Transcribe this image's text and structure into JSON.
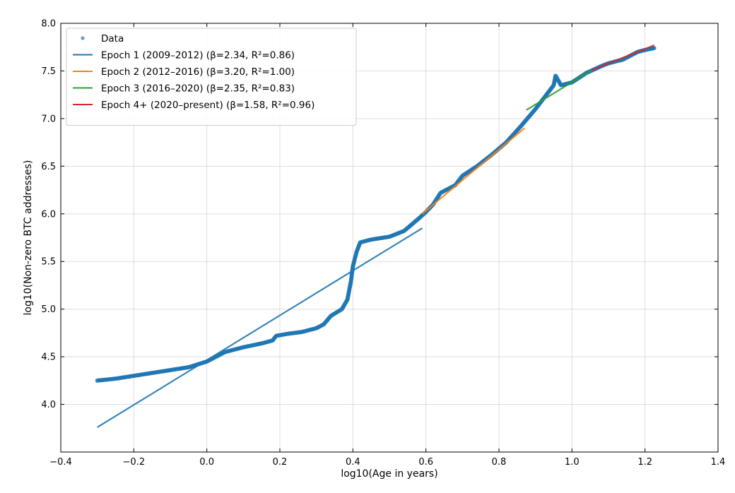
{
  "chart_data": {
    "type": "scatter",
    "title": "",
    "xlabel": "log10(Age in years)",
    "ylabel": "log10(Non-zero BTC addresses)",
    "xlim": [
      -0.4,
      1.4
    ],
    "ylim": [
      3.5,
      8.0
    ],
    "xticks": [
      -0.4,
      -0.2,
      0.0,
      0.2,
      0.4,
      0.6,
      0.8,
      1.0,
      1.2,
      1.4
    ],
    "xtick_labels": [
      "−0.4",
      "−0.2",
      "0.0",
      "0.2",
      "0.4",
      "0.6",
      "0.8",
      "1.0",
      "1.2",
      "1.4"
    ],
    "yticks": [
      4.0,
      4.5,
      5.0,
      5.5,
      6.0,
      6.5,
      7.0,
      7.5,
      8.0
    ],
    "ytick_labels": [
      "4.0",
      "4.5",
      "5.0",
      "5.5",
      "6.0",
      "6.5",
      "7.0",
      "7.5",
      "8.0"
    ],
    "grid": true,
    "legend_position": "top-left",
    "data_series": {
      "name": "Data",
      "color": "#1f77b4",
      "points": [
        [
          -0.3,
          4.25
        ],
        [
          -0.25,
          4.27
        ],
        [
          -0.2,
          4.3
        ],
        [
          -0.15,
          4.33
        ],
        [
          -0.1,
          4.36
        ],
        [
          -0.05,
          4.39
        ],
        [
          0.0,
          4.45
        ],
        [
          0.05,
          4.55
        ],
        [
          0.1,
          4.6
        ],
        [
          0.15,
          4.64
        ],
        [
          0.18,
          4.67
        ],
        [
          0.19,
          4.72
        ],
        [
          0.22,
          4.74
        ],
        [
          0.26,
          4.76
        ],
        [
          0.3,
          4.8
        ],
        [
          0.32,
          4.84
        ],
        [
          0.34,
          4.93
        ],
        [
          0.37,
          5.0
        ],
        [
          0.385,
          5.1
        ],
        [
          0.395,
          5.3
        ],
        [
          0.4,
          5.45
        ],
        [
          0.41,
          5.6
        ],
        [
          0.42,
          5.7
        ],
        [
          0.45,
          5.73
        ],
        [
          0.5,
          5.76
        ],
        [
          0.54,
          5.82
        ],
        [
          0.58,
          5.95
        ],
        [
          0.6,
          6.02
        ],
        [
          0.62,
          6.1
        ],
        [
          0.64,
          6.22
        ],
        [
          0.68,
          6.3
        ],
        [
          0.7,
          6.4
        ],
        [
          0.74,
          6.5
        ],
        [
          0.78,
          6.62
        ],
        [
          0.82,
          6.75
        ],
        [
          0.86,
          6.92
        ],
        [
          0.9,
          7.1
        ],
        [
          0.93,
          7.25
        ],
        [
          0.95,
          7.35
        ],
        [
          0.955,
          7.45
        ],
        [
          0.97,
          7.35
        ],
        [
          1.0,
          7.38
        ],
        [
          1.04,
          7.48
        ],
        [
          1.08,
          7.55
        ],
        [
          1.1,
          7.58
        ],
        [
          1.14,
          7.62
        ],
        [
          1.18,
          7.7
        ],
        [
          1.2,
          7.72
        ],
        [
          1.225,
          7.74
        ]
      ]
    },
    "fits": [
      {
        "name": "Epoch 1 (2009–2012) (β=2.34, R²=0.86)",
        "color": "#1f77b4",
        "x": [
          -0.3,
          0.59
        ],
        "y": [
          3.76,
          5.85
        ]
      },
      {
        "name": "Epoch 2 (2012–2016) (β=3.20, R²=1.00)",
        "color": "#ff7f0e",
        "x": [
          0.59,
          0.87
        ],
        "y": [
          6.0,
          6.9
        ]
      },
      {
        "name": "Epoch 3 (2016–2020) (β=2.35, R²=0.83)",
        "color": "#2ca02c",
        "x": [
          0.875,
          1.055
        ],
        "y": [
          7.09,
          7.51
        ]
      },
      {
        "name": "Epoch 4+ (2020–present) (β=1.58, R²=0.96)",
        "color": "#d62728",
        "x": [
          1.055,
          1.225
        ],
        "y": [
          7.51,
          7.77
        ]
      }
    ]
  }
}
